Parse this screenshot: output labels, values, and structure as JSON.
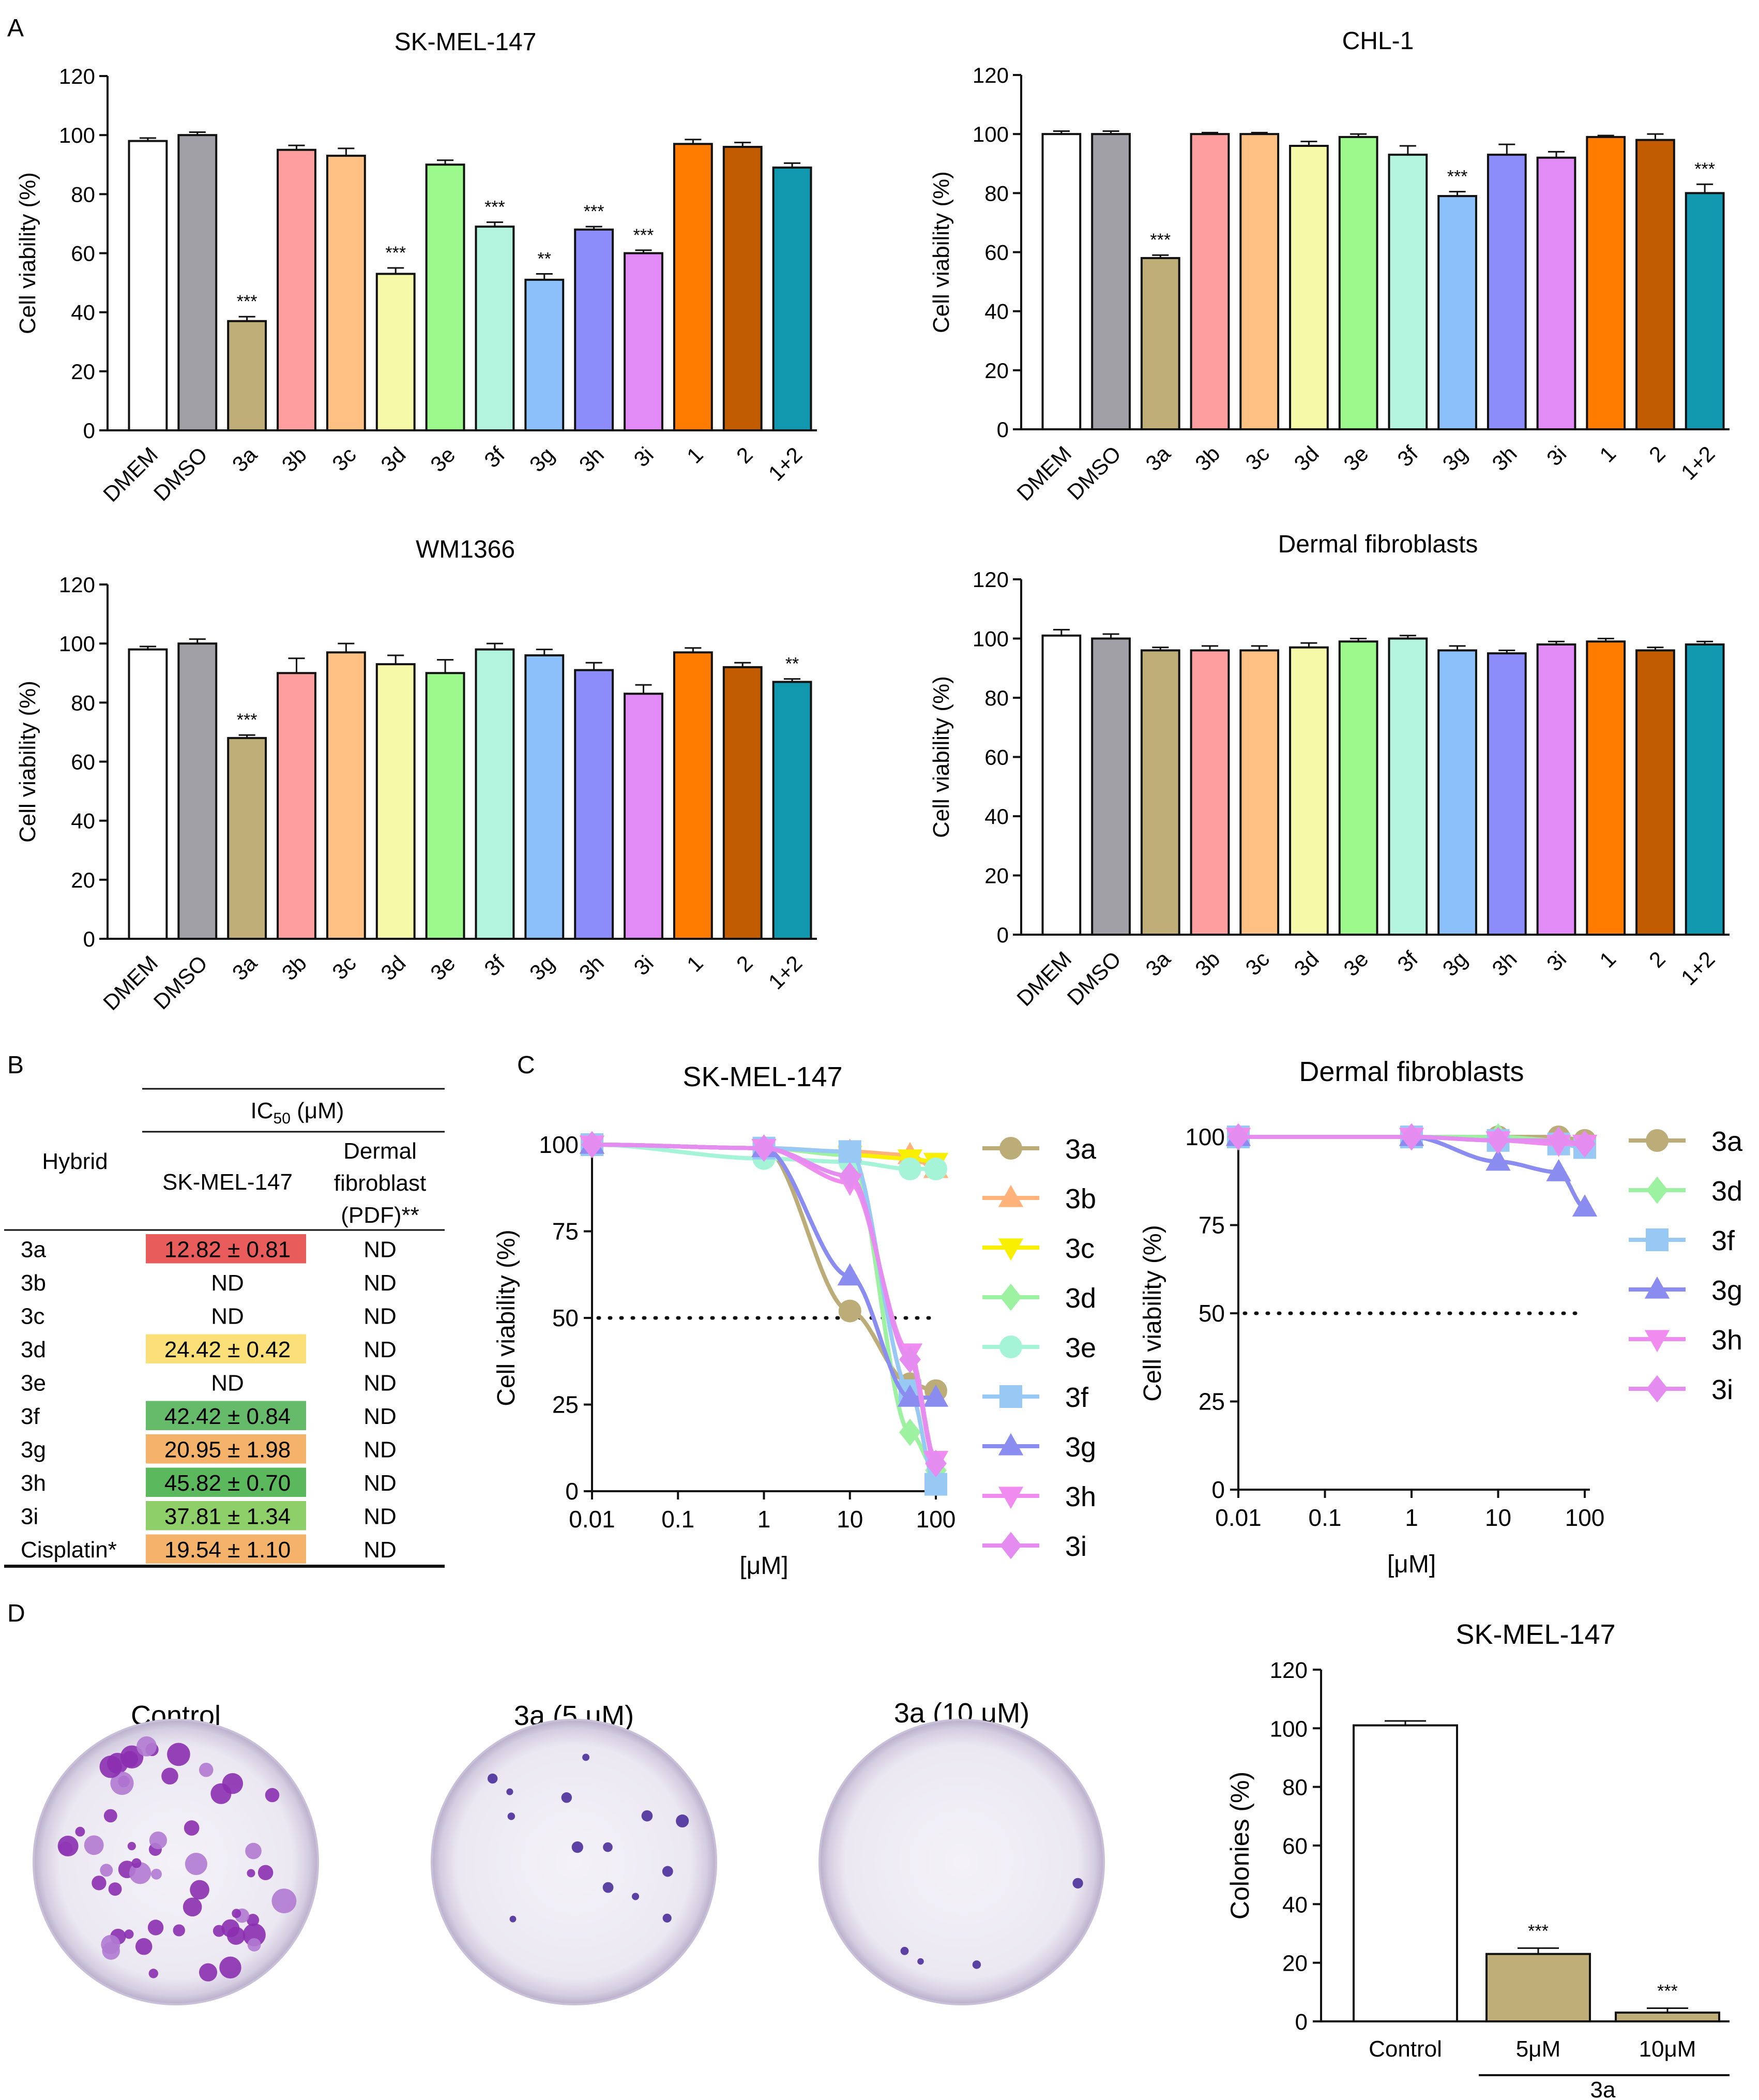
{
  "panel_letters": [
    "A",
    "B",
    "C",
    "D"
  ],
  "colors": {
    "DMEM": "#ffffff",
    "DMSO": "#a0a0a6",
    "3a": "#bfae78",
    "3b": "#ff9e9e",
    "3c": "#ffc084",
    "3d": "#f6faa8",
    "3e": "#9cfa8c",
    "3f": "#b2f4de",
    "3g": "#8cc0fa",
    "3h": "#8c8cfa",
    "3i": "#e28af6",
    "1": "#ff7c00",
    "2": "#c25c00",
    "1+2": "#1298ae"
  },
  "curve_colors": {
    "3a": "#bcad78",
    "3b": "#ffb27a",
    "3c": "#f8f000",
    "3d": "#9cf2a0",
    "3e": "#a6f4d8",
    "3f": "#98c8f4",
    "3g": "#8a8cf0",
    "3h": "#f08cf0",
    "3i": "#e48cf0"
  },
  "chart_data": [
    {
      "type": "bar",
      "panel": "A",
      "title": "SK-MEL-147",
      "ylabel": "Cell viability (%)",
      "ylim": [
        0,
        120
      ],
      "yticks": [
        0,
        20,
        40,
        60,
        80,
        100,
        120
      ],
      "categories": [
        "DMEM",
        "DMSO",
        "3a",
        "3b",
        "3c",
        "3d",
        "3e",
        "3f",
        "3g",
        "3h",
        "3i",
        "1",
        "2",
        "1+2"
      ],
      "values": [
        98,
        100,
        37,
        95,
        93,
        53,
        90,
        69,
        51,
        68,
        60,
        97,
        96,
        89
      ],
      "errors": [
        1,
        1,
        1.5,
        1.5,
        2.5,
        2,
        1.5,
        1.5,
        2,
        1,
        1,
        1.5,
        1.5,
        1.5
      ],
      "significance": [
        "",
        "",
        "***",
        "",
        "",
        "***",
        "",
        "***",
        "**",
        "***",
        "***",
        "",
        "",
        ""
      ]
    },
    {
      "type": "bar",
      "panel": "A",
      "title": "CHL-1",
      "ylabel": "Cell viability (%)",
      "ylim": [
        0,
        120
      ],
      "yticks": [
        0,
        20,
        40,
        60,
        80,
        100,
        120
      ],
      "categories": [
        "DMEM",
        "DMSO",
        "3a",
        "3b",
        "3c",
        "3d",
        "3e",
        "3f",
        "3g",
        "3h",
        "3i",
        "1",
        "2",
        "1+2"
      ],
      "values": [
        100,
        100,
        58,
        100,
        100,
        96,
        99,
        93,
        79,
        93,
        92,
        99,
        98,
        80
      ],
      "errors": [
        1,
        1,
        1,
        0.5,
        0.5,
        1.5,
        1,
        3,
        1.5,
        3.5,
        2,
        0.5,
        2,
        3
      ],
      "significance": [
        "",
        "",
        "***",
        "",
        "",
        "",
        "",
        "",
        "***",
        "",
        "",
        "",
        "",
        "***"
      ]
    },
    {
      "type": "bar",
      "panel": "A",
      "title": "WM1366",
      "ylabel": "Cell viability (%)",
      "ylim": [
        0,
        120
      ],
      "yticks": [
        0,
        20,
        40,
        60,
        80,
        100,
        120
      ],
      "categories": [
        "DMEM",
        "DMSO",
        "3a",
        "3b",
        "3c",
        "3d",
        "3e",
        "3f",
        "3g",
        "3h",
        "3i",
        "1",
        "2",
        "1+2"
      ],
      "values": [
        98,
        100,
        68,
        90,
        97,
        93,
        90,
        98,
        96,
        91,
        83,
        97,
        92,
        87
      ],
      "errors": [
        1,
        1.5,
        1,
        5,
        3,
        3,
        4.5,
        2,
        2,
        2.5,
        3,
        1.5,
        1.5,
        1
      ],
      "significance": [
        "",
        "",
        "***",
        "",
        "",
        "",
        "",
        "",
        "",
        "",
        "",
        "",
        "",
        "**"
      ]
    },
    {
      "type": "bar",
      "panel": "A",
      "title": "Dermal fibroblasts",
      "ylabel": "Cell viability (%)",
      "ylim": [
        0,
        120
      ],
      "yticks": [
        0,
        20,
        40,
        60,
        80,
        100,
        120
      ],
      "categories": [
        "DMEM",
        "DMSO",
        "3a",
        "3b",
        "3c",
        "3d",
        "3e",
        "3f",
        "3g",
        "3h",
        "3i",
        "1",
        "2",
        "1+2"
      ],
      "values": [
        101,
        100,
        96,
        96,
        96,
        97,
        99,
        100,
        96,
        95,
        98,
        99,
        96,
        98
      ],
      "errors": [
        2,
        1.5,
        1,
        1.5,
        1.5,
        1.5,
        1,
        1,
        1.5,
        1,
        1,
        1,
        1,
        1
      ],
      "significance": [
        "",
        "",
        "",
        "",
        "",
        "",
        "",
        "",
        "",
        "",
        "",
        "",
        "",
        ""
      ]
    },
    {
      "type": "table",
      "panel": "B",
      "header_top": "IC50 (μM)",
      "header_hybrid": "Hybrid",
      "columns": [
        "SK-MEL-147",
        "Dermal fibroblast (PDF)**"
      ],
      "rows": [
        {
          "hybrid": "3a",
          "sk": "12.82 ± 0.81",
          "pdf": "ND",
          "color": "#e85c5c"
        },
        {
          "hybrid": "3b",
          "sk": "ND",
          "pdf": "ND",
          "color": ""
        },
        {
          "hybrid": "3c",
          "sk": "ND",
          "pdf": "ND",
          "color": ""
        },
        {
          "hybrid": "3d",
          "sk": "24.42 ± 0.42",
          "pdf": "ND",
          "color": "#fbe07a"
        },
        {
          "hybrid": "3e",
          "sk": "ND",
          "pdf": "ND",
          "color": ""
        },
        {
          "hybrid": "3f",
          "sk": "42.42 ± 0.84",
          "pdf": "ND",
          "color": "#66bb6a"
        },
        {
          "hybrid": "3g",
          "sk": "20.95 ± 1.98",
          "pdf": "ND",
          "color": "#f5b26b"
        },
        {
          "hybrid": "3h",
          "sk": "45.82 ± 0.70",
          "pdf": "ND",
          "color": "#5cb85c"
        },
        {
          "hybrid": "3i",
          "sk": "37.81 ± 1.34",
          "pdf": "ND",
          "color": "#8fcf6a"
        },
        {
          "hybrid": "Cisplatin*",
          "sk": "19.54 ± 1.10",
          "pdf": "ND",
          "color": "#f5b26b"
        }
      ]
    },
    {
      "type": "line",
      "panel": "C",
      "title": "SK-MEL-147",
      "xlabel": "[μM]",
      "ylabel": "Cell viability (%)",
      "xscale": "log",
      "xlim": [
        0.01,
        100
      ],
      "ylim": [
        0,
        100
      ],
      "xticks": [
        "0.01",
        "0.1",
        "1",
        "10",
        "100"
      ],
      "yticks": [
        0,
        25,
        50,
        75,
        100
      ],
      "reference_line": 50,
      "x": [
        0.01,
        1,
        10,
        50,
        100
      ],
      "series": [
        {
          "name": "3a",
          "marker": "circle",
          "values": [
            100,
            99,
            52,
            31,
            29
          ]
        },
        {
          "name": "3b",
          "marker": "triangle-up",
          "values": [
            100,
            99,
            98,
            97,
            93
          ]
        },
        {
          "name": "3c",
          "marker": "triangle-down",
          "values": [
            100,
            99,
            97,
            96,
            95
          ]
        },
        {
          "name": "3d",
          "marker": "diamond",
          "values": [
            100,
            99,
            97,
            17,
            6
          ]
        },
        {
          "name": "3e",
          "marker": "circle",
          "values": [
            100,
            96,
            95,
            93,
            93
          ]
        },
        {
          "name": "3f",
          "marker": "square",
          "values": [
            100,
            99,
            98,
            29,
            2
          ]
        },
        {
          "name": "3g",
          "marker": "triangle-up",
          "values": [
            100,
            99,
            62,
            27,
            27
          ]
        },
        {
          "name": "3h",
          "marker": "triangle-down",
          "values": [
            100,
            99,
            89,
            40,
            9
          ]
        },
        {
          "name": "3i",
          "marker": "diamond",
          "values": [
            100,
            99,
            91,
            38,
            8
          ]
        }
      ]
    },
    {
      "type": "line",
      "panel": "C",
      "title": "Dermal fibroblasts",
      "xlabel": "[μM]",
      "ylabel": "Cell viability (%)",
      "xscale": "log",
      "xlim": [
        0.01,
        100
      ],
      "ylim": [
        0,
        100
      ],
      "xticks": [
        "0.01",
        "0.1",
        "1",
        "10",
        "100"
      ],
      "yticks": [
        0,
        25,
        50,
        75,
        100
      ],
      "reference_line": 50,
      "x": [
        0.01,
        1,
        10,
        50,
        100
      ],
      "series": [
        {
          "name": "3a",
          "marker": "circle",
          "values": [
            100,
            100,
            100,
            100,
            99
          ]
        },
        {
          "name": "3d",
          "marker": "diamond",
          "values": [
            100,
            100,
            100,
            99,
            98
          ]
        },
        {
          "name": "3f",
          "marker": "square",
          "values": [
            100,
            100,
            99,
            98,
            97
          ]
        },
        {
          "name": "3g",
          "marker": "triangle-up",
          "values": [
            100,
            100,
            93,
            90,
            80
          ]
        },
        {
          "name": "3h",
          "marker": "triangle-down",
          "values": [
            100,
            100,
            99,
            98,
            98
          ]
        },
        {
          "name": "3i",
          "marker": "diamond",
          "values": [
            100,
            100,
            99,
            99,
            98
          ]
        }
      ]
    },
    {
      "type": "bar",
      "panel": "D",
      "title": "SK-MEL-147",
      "ylabel": "Colonies (%)",
      "ylim": [
        0,
        120
      ],
      "yticks": [
        0,
        20,
        40,
        60,
        80,
        100,
        120
      ],
      "categories": [
        "Control",
        "5μM",
        "10μM"
      ],
      "group_label": "3a",
      "values": [
        101,
        23,
        3
      ],
      "errors": [
        1.5,
        2,
        1.5
      ],
      "significance": [
        "",
        "***",
        "***"
      ],
      "colors": [
        "#ffffff",
        "#bfae78",
        "#bfae78"
      ]
    }
  ],
  "plates": [
    {
      "label": "Control",
      "colonies": "many"
    },
    {
      "label": "3a (5 μM)",
      "colonies": "few"
    },
    {
      "label": "3a (10 μM)",
      "colonies": "very few"
    }
  ]
}
